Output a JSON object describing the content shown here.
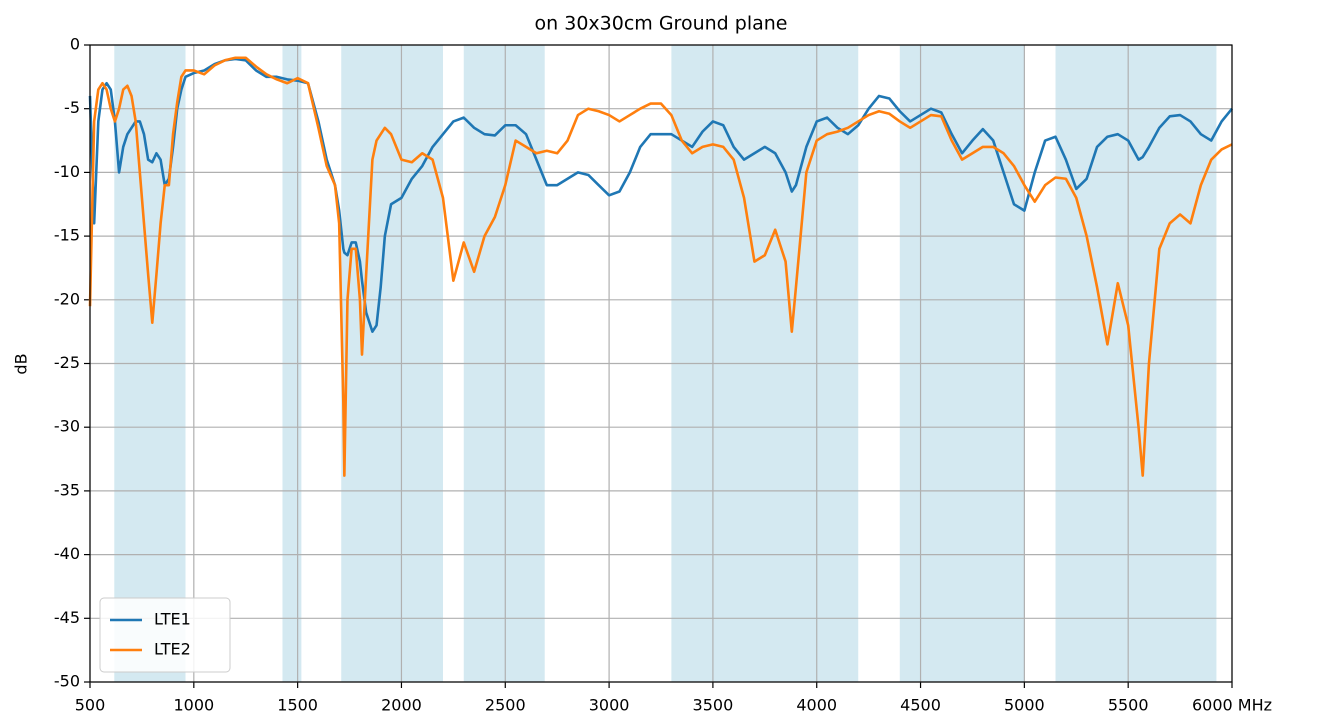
{
  "chart_data": {
    "type": "line",
    "title": "on 30x30cm Ground plane",
    "y_label": "dB",
    "x": [
      500,
      520,
      540,
      560,
      580,
      600,
      620,
      640,
      660,
      680,
      700,
      720,
      740,
      760,
      780,
      800,
      820,
      840,
      860,
      880,
      900,
      920,
      940,
      960,
      1000,
      1050,
      1100,
      1150,
      1200,
      1250,
      1300,
      1350,
      1400,
      1450,
      1500,
      1550,
      1600,
      1640,
      1680,
      1700,
      1720,
      1725,
      1740,
      1760,
      1780,
      1800,
      1810,
      1830,
      1860,
      1880,
      1900,
      1920,
      1950,
      2000,
      2050,
      2100,
      2150,
      2200,
      2250,
      2300,
      2350,
      2400,
      2450,
      2500,
      2550,
      2600,
      2650,
      2700,
      2750,
      2800,
      2850,
      2900,
      2950,
      3000,
      3050,
      3100,
      3150,
      3200,
      3250,
      3300,
      3350,
      3400,
      3450,
      3500,
      3550,
      3600,
      3650,
      3700,
      3750,
      3800,
      3850,
      3880,
      3900,
      3950,
      4000,
      4050,
      4100,
      4150,
      4200,
      4250,
      4300,
      4350,
      4400,
      4450,
      4500,
      4550,
      4600,
      4650,
      4700,
      4750,
      4800,
      4850,
      4900,
      4950,
      5000,
      5050,
      5100,
      5150,
      5200,
      5250,
      5300,
      5350,
      5400,
      5450,
      5500,
      5550,
      5570,
      5600,
      5650,
      5700,
      5750,
      5800,
      5850,
      5900,
      5950,
      6000
    ],
    "series": [
      {
        "name": "LTE1",
        "color": "#1f77b4",
        "values": [
          -4,
          -14,
          -6,
          -3.5,
          -3,
          -3.5,
          -6,
          -10,
          -8,
          -7,
          -6.5,
          -6,
          -6,
          -7,
          -9,
          -9.2,
          -8.5,
          -9,
          -11,
          -10.5,
          -8,
          -5,
          -3.5,
          -2.5,
          -2.2,
          -2,
          -1.5,
          -1.2,
          -1.1,
          -1.2,
          -2,
          -2.5,
          -2.5,
          -2.7,
          -2.8,
          -3,
          -6,
          -9,
          -11,
          -13,
          -16,
          -16.3,
          -16.5,
          -15.5,
          -15.5,
          -17,
          -18.5,
          -21,
          -22.5,
          -22,
          -19,
          -15,
          -12.5,
          -12,
          -10.5,
          -9.5,
          -8,
          -7,
          -6,
          -5.7,
          -6.5,
          -7,
          -7.1,
          -6.3,
          -6.3,
          -7,
          -9,
          -11,
          -11,
          -10.5,
          -10,
          -10.2,
          -11,
          -11.8,
          -11.5,
          -10,
          -8,
          -7,
          -7,
          -7,
          -7.5,
          -8,
          -6.8,
          -6,
          -6.3,
          -8,
          -9,
          -8.5,
          -8,
          -8.5,
          -10,
          -11.5,
          -11,
          -8,
          -6,
          -5.7,
          -6.5,
          -7,
          -6.3,
          -5,
          -4,
          -4.2,
          -5.2,
          -6,
          -5.5,
          -5,
          -5.3,
          -7,
          -8.5,
          -7.5,
          -6.6,
          -7.5,
          -10,
          -12.5,
          -13,
          -10,
          -7.5,
          -7.2,
          -9,
          -11.3,
          -10.5,
          -8,
          -7.2,
          -7,
          -7.5,
          -9,
          -8.8,
          -8,
          -6.5,
          -5.6,
          -5.5,
          -6,
          -7,
          -7.5,
          -6,
          -5
        ]
      },
      {
        "name": "LTE2",
        "color": "#ff7f0e",
        "values": [
          -20.5,
          -6,
          -3.5,
          -3,
          -3.5,
          -5,
          -6,
          -5,
          -3.5,
          -3.2,
          -4,
          -6,
          -10,
          -14,
          -18,
          -21.8,
          -18,
          -14,
          -11,
          -11,
          -7,
          -4.5,
          -2.5,
          -2,
          -2,
          -2.3,
          -1.6,
          -1.2,
          -1,
          -1,
          -1.7,
          -2.3,
          -2.7,
          -3,
          -2.6,
          -3,
          -6.5,
          -9.5,
          -11,
          -14,
          -28,
          -33.8,
          -20,
          -16,
          -16,
          -20,
          -24.3,
          -18,
          -9,
          -7.5,
          -7,
          -6.5,
          -7,
          -9,
          -9.2,
          -8.5,
          -9,
          -12,
          -18.5,
          -15.5,
          -17.8,
          -15,
          -13.5,
          -11,
          -7.5,
          -8,
          -8.5,
          -8.3,
          -8.5,
          -7.5,
          -5.5,
          -5,
          -5.2,
          -5.5,
          -6,
          -5.5,
          -5,
          -4.6,
          -4.6,
          -5.5,
          -7.5,
          -8.5,
          -8,
          -7.8,
          -8,
          -9,
          -12,
          -17,
          -16.5,
          -14.5,
          -17,
          -22.5,
          -19,
          -10,
          -7.5,
          -7,
          -6.8,
          -6.5,
          -6,
          -5.5,
          -5.2,
          -5.4,
          -6,
          -6.5,
          -6,
          -5.5,
          -5.6,
          -7.5,
          -9,
          -8.5,
          -8,
          -8,
          -8.5,
          -9.5,
          -11,
          -12.3,
          -11,
          -10.4,
          -10.5,
          -12,
          -15,
          -19,
          -23.5,
          -18.7,
          -22,
          -30,
          -33.8,
          -25,
          -16,
          -14,
          -13.3,
          -14,
          -11,
          -9,
          -8.2,
          -7.8
        ]
      }
    ],
    "bands": [
      [
        617,
        960
      ],
      [
        1427,
        1518
      ],
      [
        1710,
        2200
      ],
      [
        2300,
        2690
      ],
      [
        3300,
        4200
      ],
      [
        4400,
        5000
      ],
      [
        5150,
        5925
      ]
    ],
    "band_color": "#d4e9f1",
    "xlim": [
      500,
      6000
    ],
    "xticks": [
      500,
      1000,
      1500,
      2000,
      2500,
      3000,
      3500,
      4000,
      4500,
      5000,
      5500,
      {
        "value": 6000,
        "label": "6000 MHz"
      }
    ],
    "ylim": [
      -50,
      0
    ],
    "yticks": [
      0,
      -5,
      -10,
      -15,
      -20,
      -25,
      -30,
      -35,
      -40,
      -45,
      -50
    ],
    "grid": true,
    "legend": "lower left"
  }
}
